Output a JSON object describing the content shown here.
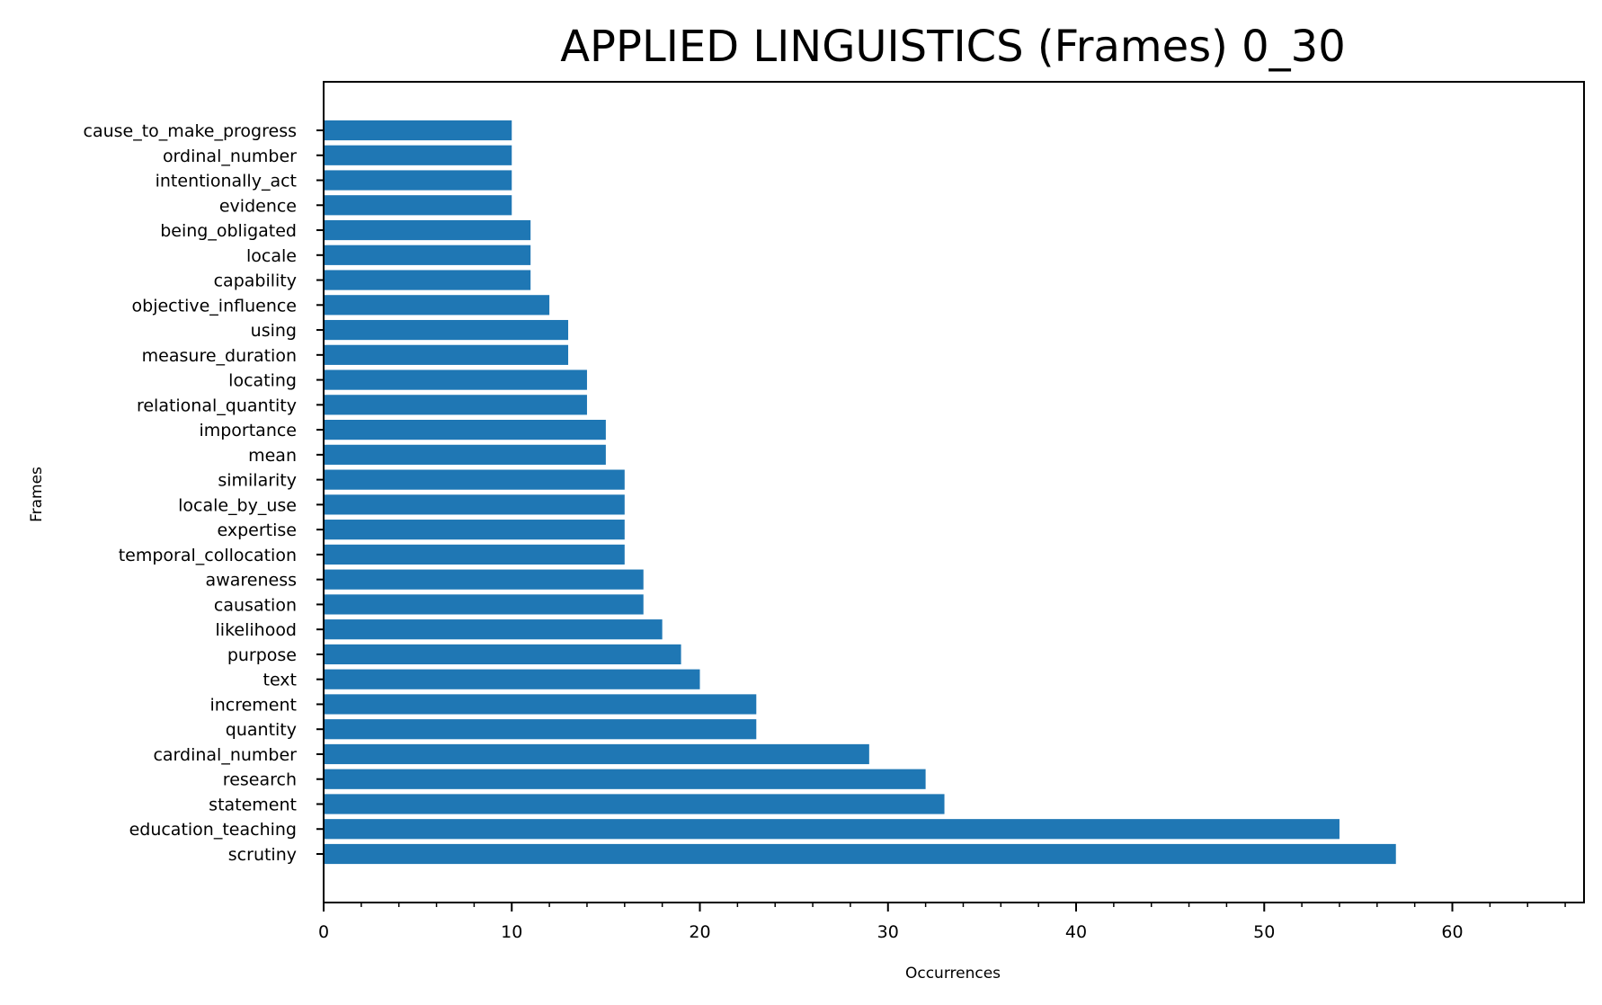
{
  "chart_data": {
    "type": "bar",
    "orientation": "horizontal",
    "title": "APPLIED LINGUISTICS (Frames) 0_30",
    "xlabel": "Occurrences",
    "ylabel": "Frames",
    "xlim": [
      0,
      67
    ],
    "x_ticks": [
      0,
      10,
      20,
      30,
      40,
      50,
      60
    ],
    "grid": false,
    "bar_color": "#1f77b4",
    "categories": [
      "scrutiny",
      "education_teaching",
      "statement",
      "research",
      "cardinal_number",
      "quantity",
      "increment",
      "text",
      "purpose",
      "likelihood",
      "causation",
      "awareness",
      "temporal_collocation",
      "expertise",
      "locale_by_use",
      "similarity",
      "mean",
      "importance",
      "relational_quantity",
      "locating",
      "measure_duration",
      "using",
      "objective_influence",
      "capability",
      "locale",
      "being_obligated",
      "evidence",
      "intentionally_act",
      "ordinal_number",
      "cause_to_make_progress"
    ],
    "values": [
      57,
      54,
      33,
      32,
      29,
      23,
      23,
      20,
      19,
      18,
      17,
      17,
      16,
      16,
      16,
      16,
      15,
      15,
      14,
      14,
      13,
      13,
      12,
      11,
      11,
      11,
      10,
      10,
      10,
      10
    ]
  }
}
